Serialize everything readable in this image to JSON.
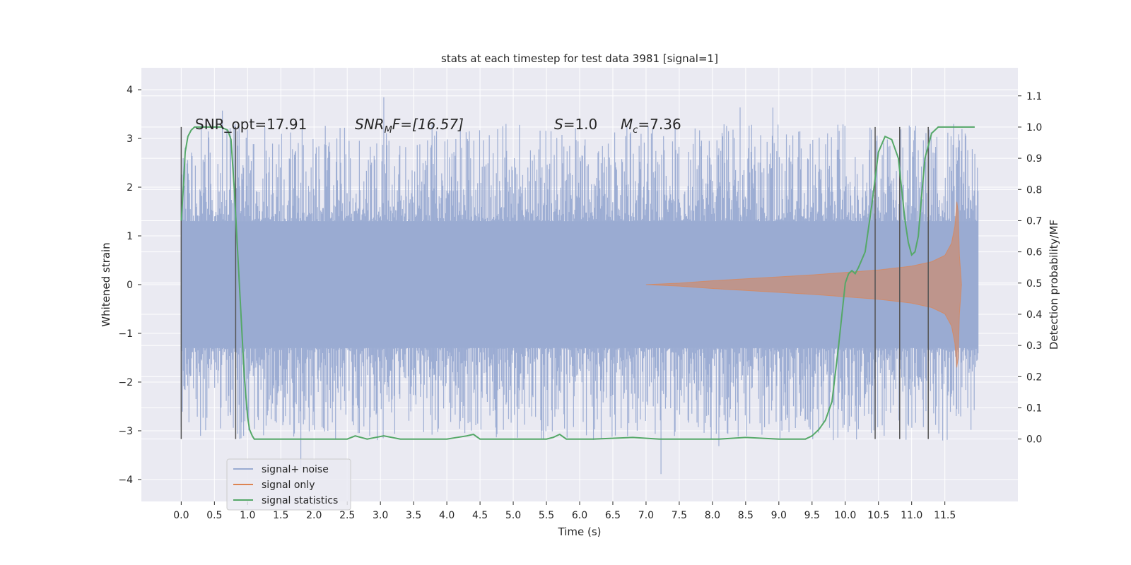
{
  "chart_data": {
    "type": "line",
    "title": "stats at each timestep for test data 3981 [signal=1]",
    "xlabel": "Time (s)",
    "ylabel": "Whitened strain",
    "y2label": "Detection probability/MF",
    "xlim": [
      -0.6,
      12.6
    ],
    "ylim": [
      -4.45,
      4.45
    ],
    "y2lim": [
      -0.2,
      1.19
    ],
    "x_ticks": [
      "0.0",
      "0.5",
      "1.0",
      "1.5",
      "2.0",
      "2.5",
      "3.0",
      "3.5",
      "4.0",
      "4.5",
      "5.0",
      "5.5",
      "6.0",
      "6.5",
      "7.0",
      "7.5",
      "8.0",
      "8.5",
      "9.0",
      "9.5",
      "10.0",
      "10.5",
      "11.0",
      "11.5"
    ],
    "y_ticks": [
      "−4",
      "−3",
      "−2",
      "−1",
      "0",
      "1",
      "2",
      "3",
      "4"
    ],
    "y2_ticks": [
      "0.0",
      "0.1",
      "0.2",
      "0.3",
      "0.4",
      "0.5",
      "0.6",
      "0.7",
      "0.8",
      "0.9",
      "1.0",
      "1.1"
    ],
    "grid": true,
    "legend_position": "lower-left",
    "colors": {
      "background": "#eaeaf2",
      "grid": "#ffffff",
      "noise": "#9aabd2",
      "signal": "#dd8452",
      "statistics": "#55a868",
      "markers": "#555555"
    },
    "series": [
      {
        "name": "signal+ noise",
        "t_range": [
          0.0,
          12.0
        ],
        "typical_envelope": [
          -1.3,
          1.3
        ],
        "peak_envelope_max": 4.1,
        "peak_envelope_min": -4.05
      },
      {
        "name": "signal only",
        "envelope": {
          "x": [
            7.0,
            7.5,
            8.0,
            8.5,
            9.0,
            9.5,
            10.0,
            10.5,
            11.0,
            11.3,
            11.5,
            11.6,
            11.65,
            11.68,
            11.7,
            11.72,
            11.75
          ],
          "y": [
            0.0,
            0.03,
            0.08,
            0.12,
            0.16,
            0.2,
            0.25,
            0.3,
            0.38,
            0.47,
            0.6,
            0.85,
            1.2,
            1.7,
            1.5,
            0.6,
            0.0
          ]
        }
      },
      {
        "name": "signal statistics",
        "x": [
          0.0,
          0.03,
          0.06,
          0.1,
          0.15,
          0.2,
          0.3,
          0.4,
          0.5,
          0.6,
          0.7,
          0.75,
          0.8,
          0.85,
          0.9,
          0.95,
          1.0,
          1.03,
          1.07,
          1.1,
          1.2,
          1.5,
          2.0,
          2.3,
          2.5,
          2.62,
          2.8,
          3.05,
          3.3,
          3.6,
          4.0,
          4.3,
          4.4,
          4.5,
          4.8,
          5.2,
          5.5,
          5.6,
          5.7,
          5.8,
          6.2,
          6.8,
          7.2,
          7.6,
          8.1,
          8.5,
          9.0,
          9.4,
          9.5,
          9.6,
          9.7,
          9.8,
          9.9,
          10.0,
          10.05,
          10.1,
          10.15,
          10.2,
          10.3,
          10.4,
          10.5,
          10.6,
          10.7,
          10.8,
          10.85,
          10.9,
          10.95,
          11.0,
          11.05,
          11.1,
          11.15,
          11.2,
          11.3,
          11.4,
          11.5,
          11.6,
          11.7,
          11.8,
          11.9,
          11.95
        ],
        "values": [
          0.7,
          0.8,
          0.92,
          0.97,
          0.99,
          1.0,
          1.0,
          1.0,
          1.0,
          1.0,
          0.99,
          0.96,
          0.8,
          0.6,
          0.4,
          0.2,
          0.07,
          0.03,
          0.01,
          0.0,
          0.0,
          0.0,
          0.0,
          0.0,
          0.0,
          0.01,
          0.0,
          0.01,
          0.0,
          0.0,
          0.0,
          0.01,
          0.015,
          0.0,
          0.0,
          0.0,
          0.0,
          0.005,
          0.015,
          0.0,
          0.0,
          0.005,
          0.0,
          0.0,
          0.0,
          0.005,
          0.0,
          0.0,
          0.01,
          0.03,
          0.06,
          0.12,
          0.3,
          0.5,
          0.53,
          0.54,
          0.53,
          0.55,
          0.6,
          0.75,
          0.92,
          0.97,
          0.96,
          0.9,
          0.8,
          0.7,
          0.63,
          0.59,
          0.6,
          0.65,
          0.78,
          0.9,
          0.98,
          1.0,
          1.0,
          1.0,
          1.0,
          1.0,
          1.0,
          1.0
        ]
      }
    ],
    "markers": [
      0.0,
      0.82,
      10.45,
      10.82,
      11.25
    ],
    "annotations": {
      "snr_opt": "SNR_opt=17.91",
      "snr_mf_sym": "SNR",
      "snr_mf_sub": "M",
      "snr_mf_rest": "F=[16.57]",
      "s_sym": "S",
      "s_rest": "=1.0",
      "mc_sym": "M",
      "mc_sub": "c",
      "mc_rest": "=7.36"
    }
  }
}
